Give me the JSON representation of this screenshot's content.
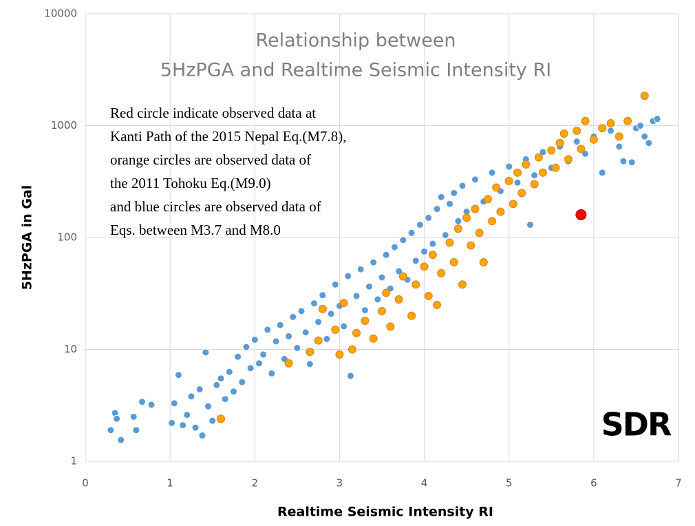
{
  "chart_data": {
    "type": "scatter",
    "title": [
      "Relationship between",
      "5HzPGA and Realtime Seismic Intensity RI"
    ],
    "annotation": [
      "Red circle indicate observed data at",
      "Kanti Path of the 2015 Nepal Eq.(M7.8),",
      "orange circles are observed data of",
      " the 2011 Tohoku Eq.(M9.0)",
      "and blue circles are observed data of",
      "Eqs. between M3.7 and  M8.0"
    ],
    "xlabel": "Realtime Seismic Intensity RI",
    "ylabel": "5HzPGA in Gal",
    "logo": "SDR",
    "xlim": [
      0,
      7
    ],
    "xticks": [
      0,
      1,
      2,
      3,
      4,
      5,
      6,
      7
    ],
    "ylim": [
      1,
      10000
    ],
    "yticks": [
      1,
      10,
      100,
      1000,
      10000
    ],
    "log_y": true,
    "grid": true,
    "series": [
      {
        "color": "#5b9bd5",
        "x": [
          0.3,
          0.35,
          0.37,
          0.42,
          0.57,
          0.6,
          0.67,
          0.78,
          1.02,
          1.05,
          1.1,
          1.15,
          1.2,
          1.25,
          1.3,
          1.35,
          1.38,
          1.42,
          1.45,
          1.5,
          1.55,
          1.6,
          1.65,
          1.7,
          1.75,
          1.8,
          1.85,
          1.9,
          1.95,
          2.0,
          2.05,
          2.1,
          2.15,
          2.2,
          2.25,
          2.3,
          2.35,
          2.4,
          2.45,
          2.5,
          2.55,
          2.6,
          2.65,
          2.7,
          2.75,
          2.8,
          2.85,
          2.9,
          2.95,
          3.0,
          3.05,
          3.1,
          3.13,
          3.2,
          3.25,
          3.3,
          3.35,
          3.4,
          3.45,
          3.5,
          3.55,
          3.6,
          3.65,
          3.7,
          3.75,
          3.8,
          3.85,
          3.9,
          3.95,
          4.0,
          4.05,
          4.1,
          4.15,
          4.2,
          4.25,
          4.3,
          4.35,
          4.4,
          4.45,
          4.5,
          4.6,
          4.7,
          4.8,
          4.9,
          5.0,
          5.1,
          5.2,
          5.25,
          5.3,
          5.4,
          5.5,
          5.6,
          5.7,
          5.8,
          5.9,
          6.0,
          6.1,
          6.2,
          6.3,
          6.35,
          6.45,
          6.5,
          6.55,
          6.6,
          6.65,
          6.7,
          6.75
        ],
        "values": [
          1.9,
          2.7,
          2.4,
          1.55,
          2.5,
          1.9,
          3.4,
          3.2,
          2.2,
          3.3,
          5.9,
          2.1,
          2.6,
          3.8,
          2.0,
          4.4,
          1.7,
          9.4,
          3.1,
          2.3,
          4.8,
          5.5,
          3.6,
          6.3,
          4.2,
          8.6,
          5.1,
          10.5,
          6.8,
          12.2,
          7.5,
          9.0,
          15.0,
          6.1,
          11.8,
          16.5,
          8.2,
          13.1,
          19.5,
          10.3,
          22.0,
          14.2,
          7.4,
          25.8,
          17.6,
          30.5,
          12.4,
          20.8,
          38.0,
          24.5,
          16.1,
          45.2,
          5.8,
          30.0,
          52.0,
          22.4,
          36.5,
          60.0,
          28.0,
          44.0,
          70.0,
          35.0,
          82.0,
          50.0,
          95.0,
          42.0,
          110.0,
          62.0,
          130.0,
          75.0,
          150.0,
          88.0,
          180.0,
          230.0,
          105.0,
          200.0,
          250.0,
          140.0,
          290.0,
          170.0,
          330.0,
          210.0,
          380.0,
          260.0,
          430.0,
          310.0,
          500.0,
          130.0,
          360.0,
          580.0,
          420.0,
          650.0,
          480.0,
          720.0,
          560.0,
          800.0,
          380.0,
          900.0,
          650.0,
          480.0,
          470.0,
          950.0,
          1000.0,
          800.0,
          700.0,
          1100.0,
          1150.0
        ]
      },
      {
        "color": "#ffa500",
        "x": [
          1.6,
          2.4,
          2.65,
          2.75,
          2.8,
          2.95,
          3.0,
          3.05,
          3.15,
          3.2,
          3.3,
          3.4,
          3.5,
          3.55,
          3.6,
          3.7,
          3.75,
          3.85,
          3.9,
          4.0,
          4.05,
          4.1,
          4.15,
          4.2,
          4.3,
          4.35,
          4.4,
          4.45,
          4.5,
          4.55,
          4.6,
          4.65,
          4.7,
          4.75,
          4.8,
          4.85,
          4.9,
          5.0,
          5.05,
          5.1,
          5.15,
          5.2,
          5.3,
          5.35,
          5.4,
          5.5,
          5.55,
          5.6,
          5.65,
          5.7,
          5.8,
          5.85,
          5.9,
          6.0,
          6.1,
          6.2,
          6.3,
          6.4,
          6.6
        ],
        "values": [
          2.4,
          7.5,
          9.5,
          12.0,
          23.0,
          15.0,
          9.0,
          26.0,
          10.0,
          14.0,
          18.0,
          12.5,
          22.0,
          32.0,
          16.0,
          28.0,
          45.0,
          20.0,
          38.0,
          55.0,
          30.0,
          70.0,
          25.0,
          48.0,
          90.0,
          60.0,
          120.0,
          38.0,
          150.0,
          85.0,
          180.0,
          110.0,
          60.0,
          220.0,
          140.0,
          280.0,
          170.0,
          320.0,
          200.0,
          380.0,
          250.0,
          450.0,
          300.0,
          520.0,
          380.0,
          600.0,
          420.0,
          700.0,
          850.0,
          500.0,
          900.0,
          620.0,
          1100.0,
          750.0,
          950.0,
          1050.0,
          800.0,
          1100.0,
          1850.0
        ]
      },
      {
        "color": "#ff0000",
        "x": [
          5.85
        ],
        "values": [
          160
        ]
      }
    ]
  }
}
